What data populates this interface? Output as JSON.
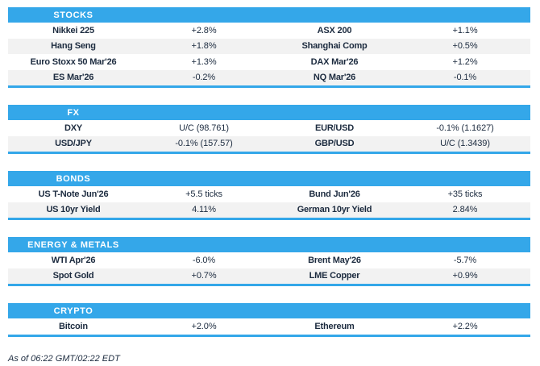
{
  "colors": {
    "accent": "#34a7e9",
    "row_alt": "#f2f2f2",
    "text": "#1c2b3f",
    "header_text": "#ffffff"
  },
  "sections": [
    {
      "title": "STOCKS",
      "rows": [
        {
          "left": {
            "label": "Nikkei 225",
            "value": "+2.8%"
          },
          "right": {
            "label": "ASX 200",
            "value": "+1.1%"
          }
        },
        {
          "left": {
            "label": "Hang Seng",
            "value": "+1.8%"
          },
          "right": {
            "label": "Shanghai Comp",
            "value": "+0.5%"
          }
        },
        {
          "left": {
            "label": "Euro Stoxx 50 Mar'26",
            "value": "+1.3%"
          },
          "right": {
            "label": "DAX Mar'26",
            "value": "+1.2%"
          }
        },
        {
          "left": {
            "label": "ES Mar'26",
            "value": "-0.2%"
          },
          "right": {
            "label": "NQ Mar'26",
            "value": "-0.1%"
          }
        }
      ]
    },
    {
      "title": "FX",
      "rows": [
        {
          "left": {
            "label": "DXY",
            "value": "U/C (98.761)"
          },
          "right": {
            "label": "EUR/USD",
            "value": "-0.1% (1.1627)"
          }
        },
        {
          "left": {
            "label": "USD/JPY",
            "value": "-0.1% (157.57)"
          },
          "right": {
            "label": "GBP/USD",
            "value": "U/C (1.3439)"
          }
        }
      ]
    },
    {
      "title": "BONDS",
      "rows": [
        {
          "left": {
            "label": "US T-Note Jun'26",
            "value": "+5.5 ticks"
          },
          "right": {
            "label": "Bund Jun'26",
            "value": "+35 ticks"
          }
        },
        {
          "left": {
            "label": "US 10yr Yield",
            "value": "4.11%"
          },
          "right": {
            "label": "German 10yr Yield",
            "value": "2.84%"
          }
        }
      ]
    },
    {
      "title": "ENERGY & METALS",
      "rows": [
        {
          "left": {
            "label": "WTI Apr'26",
            "value": "-6.0%"
          },
          "right": {
            "label": "Brent May'26",
            "value": "-5.7%"
          }
        },
        {
          "left": {
            "label": "Spot Gold",
            "value": "+0.7%"
          },
          "right": {
            "label": "LME Copper",
            "value": "+0.9%"
          }
        }
      ]
    },
    {
      "title": "CRYPTO",
      "rows": [
        {
          "left": {
            "label": "Bitcoin",
            "value": "+2.0%"
          },
          "right": {
            "label": "Ethereum",
            "value": "+2.2%"
          }
        }
      ]
    }
  ],
  "footer": {
    "text": "As of 06:22 GMT/02:22 EDT"
  }
}
